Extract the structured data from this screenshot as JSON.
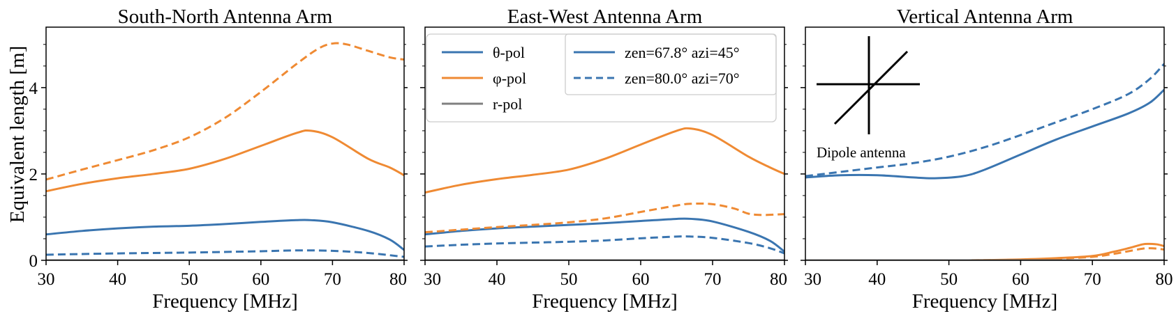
{
  "figure": {
    "ylabel": "Equivalent length [m]",
    "xlabel": "Frequency [MHz]",
    "legend_pol": [
      "θ-pol",
      "φ-pol",
      "r-pol"
    ],
    "legend_dir": [
      "zen=67.8° azi=45°",
      "zen=80.0° azi=70°"
    ],
    "annotation": "Dipole antenna"
  },
  "colors": {
    "theta": "#3a75b0",
    "phi": "#ef8a33",
    "r": "#808080"
  },
  "chart_data": [
    {
      "type": "line",
      "title": "South-North Antenna Arm",
      "xlabel": "Frequency [MHz]",
      "ylabel": "Equivalent length [m]",
      "xlim": [
        30,
        80
      ],
      "ylim": [
        0,
        5.4
      ],
      "xticks": [
        30,
        40,
        50,
        60,
        70,
        80
      ],
      "yticks": [
        0,
        2,
        4
      ],
      "series": [
        {
          "name": "θ-pol",
          "dir": "zen=67.8° azi=45°",
          "color": "theta",
          "dash": false,
          "x": [
            30,
            35,
            40,
            45,
            50,
            55,
            60,
            65,
            67,
            70,
            75,
            78,
            80
          ],
          "y": [
            0.6,
            0.68,
            0.74,
            0.78,
            0.8,
            0.84,
            0.89,
            0.93,
            0.93,
            0.88,
            0.68,
            0.48,
            0.24
          ]
        },
        {
          "name": "φ-pol",
          "dir": "zen=67.8° azi=45°",
          "color": "phi",
          "dash": false,
          "x": [
            30,
            35,
            40,
            45,
            50,
            55,
            60,
            65,
            67,
            70,
            75,
            78,
            80
          ],
          "y": [
            1.6,
            1.77,
            1.9,
            2.0,
            2.12,
            2.35,
            2.65,
            2.95,
            3.0,
            2.85,
            2.35,
            2.15,
            1.97
          ]
        },
        {
          "name": "r-pol",
          "dir": "zen=67.8° azi=45°",
          "color": "r",
          "dash": false,
          "x": [
            30,
            80
          ],
          "y": [
            0.0,
            0.0
          ]
        },
        {
          "name": "θ-pol",
          "dir": "zen=80.0° azi=70°",
          "color": "theta",
          "dash": true,
          "x": [
            30,
            40,
            50,
            60,
            65,
            70,
            75,
            80
          ],
          "y": [
            0.13,
            0.16,
            0.18,
            0.21,
            0.23,
            0.22,
            0.17,
            0.08
          ]
        },
        {
          "name": "φ-pol",
          "dir": "zen=80.0° azi=70°",
          "color": "phi",
          "dash": true,
          "x": [
            30,
            35,
            40,
            45,
            50,
            55,
            60,
            65,
            68,
            70,
            72,
            75,
            78,
            80
          ],
          "y": [
            1.87,
            2.1,
            2.32,
            2.55,
            2.85,
            3.3,
            3.9,
            4.55,
            4.9,
            5.02,
            5.0,
            4.85,
            4.7,
            4.65
          ]
        },
        {
          "name": "r-pol",
          "dir": "zen=80.0° azi=70°",
          "color": "r",
          "dash": true,
          "x": [
            30,
            80
          ],
          "y": [
            0.0,
            0.0
          ]
        }
      ]
    },
    {
      "type": "line",
      "title": "East-West Antenna Arm",
      "xlabel": "Frequency [MHz]",
      "ylabel": "",
      "xlim": [
        30,
        80
      ],
      "ylim": [
        0,
        5.4
      ],
      "xticks": [
        30,
        40,
        50,
        60,
        70,
        80
      ],
      "yticks": [
        0,
        2,
        4
      ],
      "series": [
        {
          "name": "θ-pol",
          "dir": "zen=67.8° azi=45°",
          "color": "theta",
          "dash": false,
          "x": [
            30,
            35,
            40,
            45,
            50,
            55,
            60,
            65,
            67,
            70,
            75,
            78,
            80
          ],
          "y": [
            0.6,
            0.68,
            0.74,
            0.78,
            0.82,
            0.86,
            0.91,
            0.96,
            0.96,
            0.9,
            0.66,
            0.45,
            0.2
          ]
        },
        {
          "name": "φ-pol",
          "dir": "zen=67.8° azi=45°",
          "color": "phi",
          "dash": false,
          "x": [
            30,
            35,
            40,
            45,
            50,
            55,
            60,
            65,
            67,
            70,
            75,
            78,
            80
          ],
          "y": [
            1.57,
            1.75,
            1.88,
            1.98,
            2.1,
            2.35,
            2.68,
            3.0,
            3.05,
            2.9,
            2.4,
            2.15,
            2.0
          ]
        },
        {
          "name": "r-pol",
          "dir": "zen=67.8° azi=45°",
          "color": "r",
          "dash": false,
          "x": [
            30,
            80
          ],
          "y": [
            0.0,
            0.0
          ]
        },
        {
          "name": "θ-pol",
          "dir": "zen=80.0° azi=70°",
          "color": "theta",
          "dash": true,
          "x": [
            30,
            35,
            40,
            45,
            50,
            55,
            60,
            65,
            67,
            70,
            75,
            78,
            80
          ],
          "y": [
            0.32,
            0.36,
            0.39,
            0.41,
            0.43,
            0.46,
            0.51,
            0.55,
            0.55,
            0.52,
            0.4,
            0.28,
            0.16
          ]
        },
        {
          "name": "φ-pol",
          "dir": "zen=80.0° azi=70°",
          "color": "phi",
          "dash": true,
          "x": [
            30,
            35,
            40,
            45,
            50,
            55,
            60,
            65,
            67,
            70,
            73,
            75,
            77,
            80
          ],
          "y": [
            0.65,
            0.71,
            0.77,
            0.82,
            0.88,
            0.97,
            1.12,
            1.27,
            1.31,
            1.3,
            1.2,
            1.08,
            1.05,
            1.07
          ]
        },
        {
          "name": "r-pol",
          "dir": "zen=80.0° azi=70°",
          "color": "r",
          "dash": true,
          "x": [
            30,
            80
          ],
          "y": [
            0.0,
            0.0
          ]
        }
      ]
    },
    {
      "type": "line",
      "title": "Vertical Antenna Arm",
      "xlabel": "Frequency [MHz]",
      "ylabel": "",
      "xlim": [
        30,
        80
      ],
      "ylim": [
        0,
        5.4
      ],
      "xticks": [
        30,
        40,
        50,
        60,
        70,
        80
      ],
      "yticks": [
        0,
        2,
        4
      ],
      "series": [
        {
          "name": "θ-pol",
          "dir": "zen=67.8° azi=45°",
          "color": "theta",
          "dash": false,
          "x": [
            30,
            35,
            40,
            45,
            48,
            52,
            55,
            60,
            65,
            70,
            75,
            78,
            80
          ],
          "y": [
            1.92,
            1.97,
            1.97,
            1.92,
            1.9,
            1.95,
            2.1,
            2.45,
            2.8,
            3.1,
            3.4,
            3.65,
            3.95
          ]
        },
        {
          "name": "φ-pol",
          "dir": "zen=67.8° azi=45°",
          "color": "phi",
          "dash": false,
          "x": [
            30,
            50,
            55,
            60,
            65,
            70,
            73,
            75,
            77,
            78,
            79,
            80
          ],
          "y": [
            0.0,
            0.0,
            0.005,
            0.02,
            0.05,
            0.1,
            0.2,
            0.28,
            0.37,
            0.38,
            0.37,
            0.33
          ]
        },
        {
          "name": "r-pol",
          "dir": "zen=67.8° azi=45°",
          "color": "r",
          "dash": false,
          "x": [
            30,
            80
          ],
          "y": [
            0.0,
            0.0
          ]
        },
        {
          "name": "θ-pol",
          "dir": "zen=80.0° azi=70°",
          "color": "theta",
          "dash": true,
          "x": [
            30,
            35,
            40,
            45,
            50,
            55,
            60,
            65,
            70,
            75,
            78,
            80
          ],
          "y": [
            1.95,
            2.05,
            2.15,
            2.25,
            2.4,
            2.62,
            2.9,
            3.2,
            3.5,
            3.85,
            4.2,
            4.55
          ]
        },
        {
          "name": "φ-pol",
          "dir": "zen=80.0° azi=70°",
          "color": "phi",
          "dash": true,
          "x": [
            30,
            50,
            55,
            60,
            65,
            70,
            73,
            75,
            77,
            78,
            79,
            80
          ],
          "y": [
            0.0,
            0.0,
            0.004,
            0.015,
            0.04,
            0.08,
            0.15,
            0.21,
            0.27,
            0.28,
            0.27,
            0.25
          ]
        },
        {
          "name": "r-pol",
          "dir": "zen=80.0° azi=70°",
          "color": "r",
          "dash": true,
          "x": [
            30,
            80
          ],
          "y": [
            0.0,
            0.0
          ]
        }
      ]
    }
  ]
}
